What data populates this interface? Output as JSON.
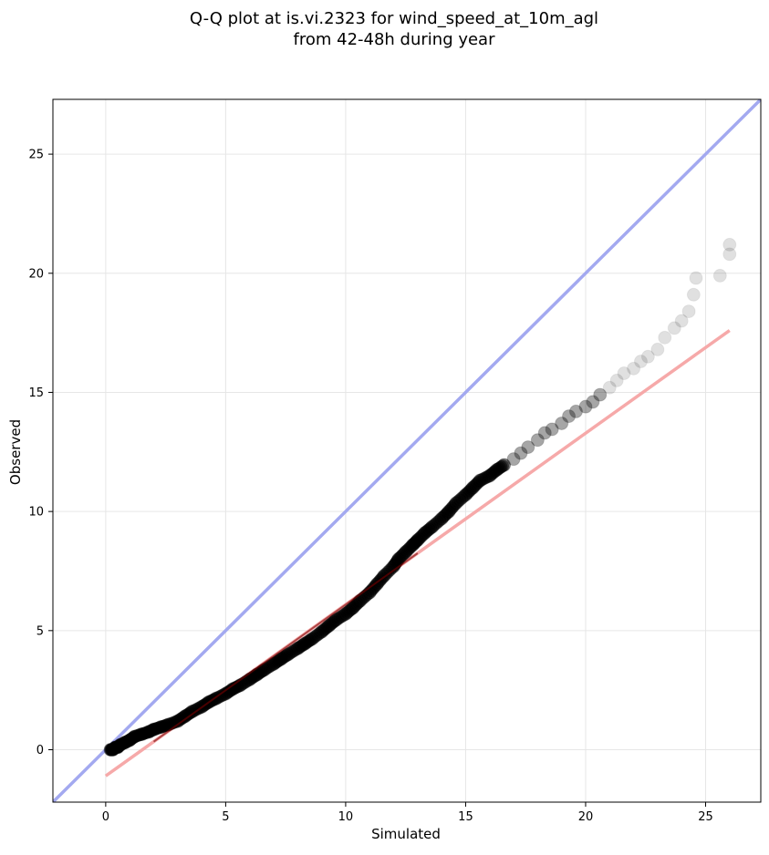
{
  "chart_data": {
    "type": "scatter",
    "title": "Q-Q plot at is.vi.2323 for wind_speed_at_10m_agl",
    "subtitle": "from 42-48h during year",
    "xlabel": "Simulated",
    "ylabel": "Observed",
    "xlim": [
      -2.2,
      27.3
    ],
    "ylim": [
      -2.2,
      27.3
    ],
    "xticks": [
      0,
      5,
      10,
      15,
      20,
      25
    ],
    "yticks": [
      0,
      5,
      10,
      15,
      20,
      25
    ],
    "xtick_labels": [
      "0",
      "5",
      "10",
      "15",
      "20",
      "25"
    ],
    "ytick_labels": [
      "0",
      "5",
      "10",
      "15",
      "20",
      "25"
    ],
    "grid": true,
    "legend": "none",
    "reference_lines": [
      {
        "kind": "identity",
        "color": "#a3a9f0",
        "x": [
          -2.2,
          27.3
        ],
        "y": [
          -2.2,
          27.3
        ]
      },
      {
        "kind": "fit",
        "color": "#f6a9a9",
        "x": [
          0.0,
          26.0
        ],
        "y": [
          -1.1,
          17.6
        ]
      }
    ],
    "series": [
      {
        "kind": "quantiles",
        "marker_color": "#000000",
        "x": [
          0.2,
          0.3,
          0.4,
          0.5,
          0.6,
          0.8,
          1.0,
          1.2,
          1.5,
          1.8,
          2.0,
          2.3,
          2.6,
          3.0,
          3.3,
          3.6,
          4.0,
          4.3,
          4.6,
          5.0,
          5.3,
          5.6,
          6.0,
          6.3,
          6.6,
          7.0,
          7.3,
          7.6,
          8.0,
          8.3,
          8.6,
          9.0,
          9.3,
          9.6,
          10.0,
          10.3,
          10.6,
          11.0,
          11.3,
          11.6,
          12.0,
          12.2,
          12.5,
          12.8,
          13.0,
          13.3,
          13.6,
          14.0,
          14.3,
          14.6,
          15.0,
          15.3,
          15.6,
          16.0,
          16.3,
          16.6,
          17.0,
          17.3,
          17.6,
          18.0,
          18.3,
          18.6,
          19.0,
          19.3,
          19.6,
          20.0,
          20.3,
          20.6,
          21.0,
          21.3,
          21.6,
          22.0,
          22.3,
          22.6,
          23.0,
          23.3,
          23.7,
          24.0,
          24.3,
          24.5,
          24.6,
          25.6,
          26.0,
          26.0
        ],
        "y": [
          0.0,
          0.0,
          0.1,
          0.1,
          0.2,
          0.3,
          0.4,
          0.55,
          0.65,
          0.75,
          0.85,
          0.95,
          1.05,
          1.2,
          1.4,
          1.6,
          1.8,
          2.0,
          2.15,
          2.35,
          2.55,
          2.7,
          2.95,
          3.15,
          3.35,
          3.6,
          3.8,
          4.0,
          4.25,
          4.45,
          4.65,
          4.95,
          5.2,
          5.45,
          5.7,
          5.95,
          6.25,
          6.6,
          6.95,
          7.3,
          7.7,
          8.0,
          8.3,
          8.6,
          8.8,
          9.1,
          9.35,
          9.7,
          10.0,
          10.35,
          10.7,
          11.0,
          11.3,
          11.5,
          11.75,
          11.95,
          12.2,
          12.45,
          12.7,
          13.0,
          13.3,
          13.45,
          13.7,
          14.0,
          14.2,
          14.4,
          14.6,
          14.9,
          15.2,
          15.5,
          15.8,
          16.0,
          16.3,
          16.5,
          16.8,
          17.3,
          17.7,
          18.0,
          18.4,
          19.1,
          19.8,
          19.9,
          20.8,
          21.2
        ]
      }
    ]
  }
}
